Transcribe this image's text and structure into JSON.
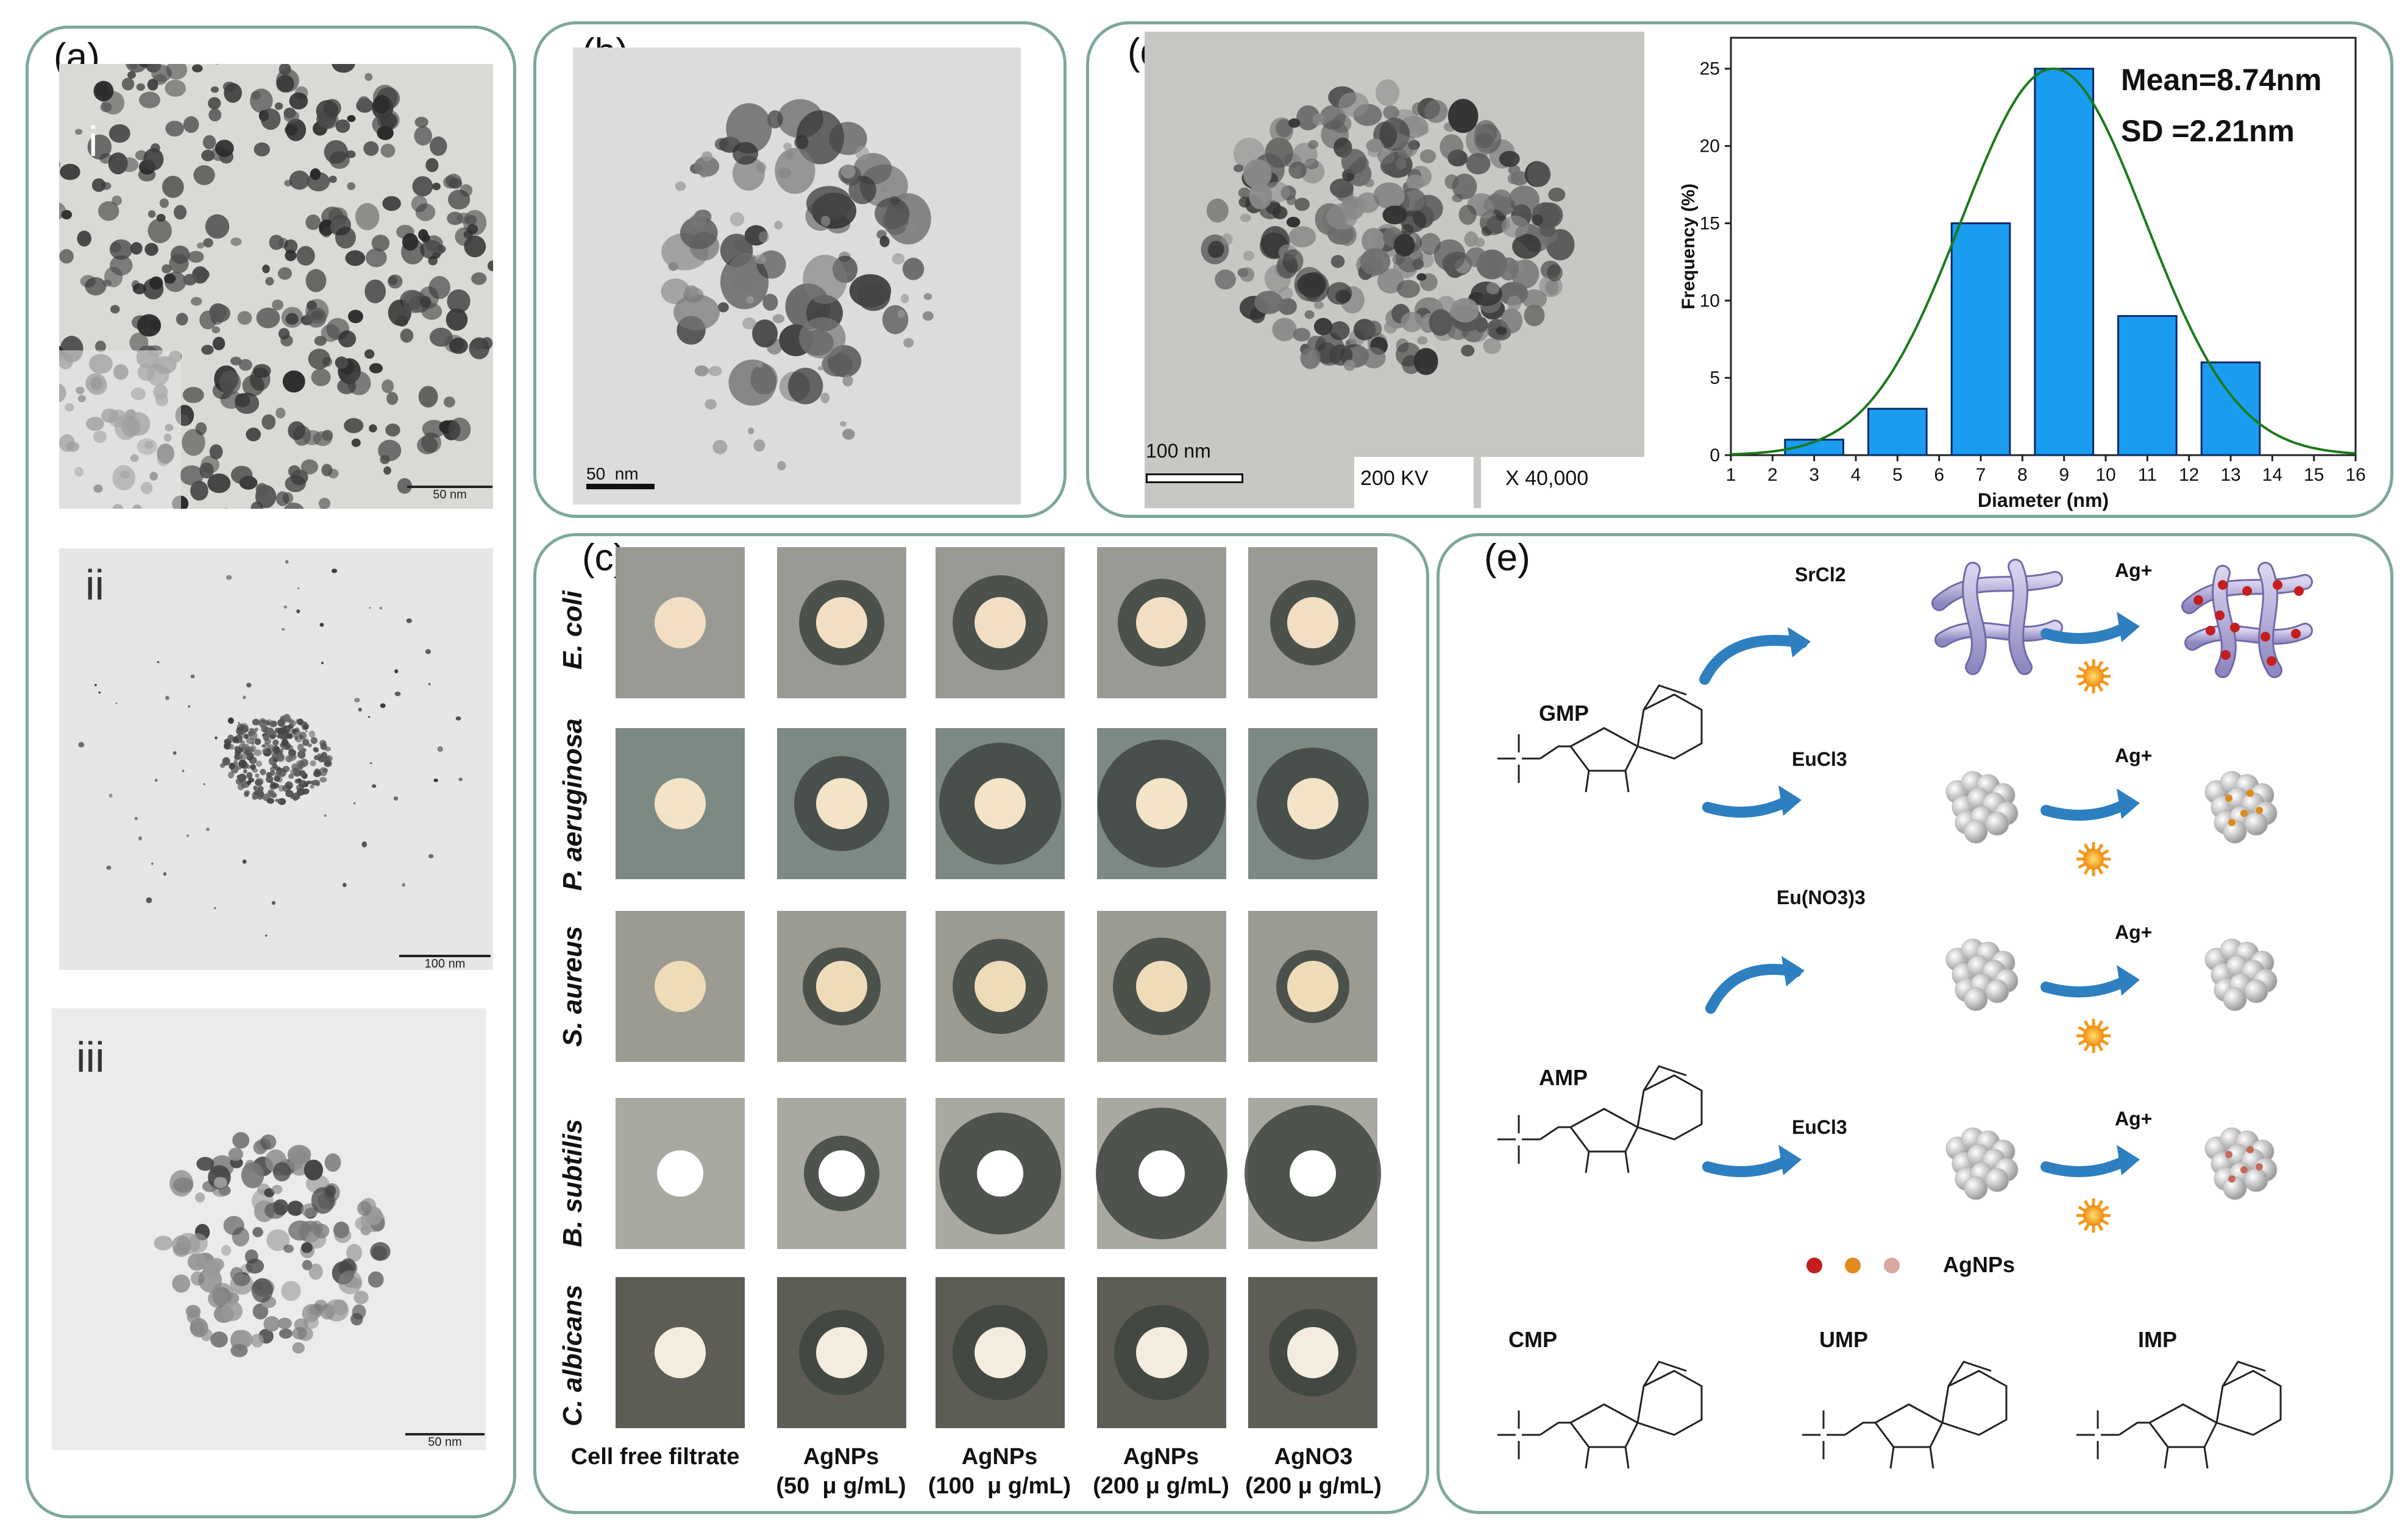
{
  "panels": {
    "a": {
      "label": "(a)",
      "subs": [
        {
          "numeral": "i",
          "scale": "50 nm"
        },
        {
          "numeral": "ii",
          "scale": "100 nm"
        },
        {
          "numeral": "iii",
          "scale": "50 nm"
        }
      ]
    },
    "b": {
      "label": "(b)",
      "scale": "50  nm"
    },
    "c": {
      "label": "(c)",
      "rows": [
        "E. coli",
        "P. aeruginosa",
        "S. aureus",
        "B. subtilis",
        "C. albicans"
      ],
      "columns": [
        {
          "line1": "Cell free filtrate",
          "line2": ""
        },
        {
          "line1": "AgNPs",
          "line2": "(50  μ g/mL)"
        },
        {
          "line1": "AgNPs",
          "line2": "(100  μ g/mL)"
        },
        {
          "line1": "AgNPs",
          "line2": "(200 μ g/mL)"
        },
        {
          "line1": "AgNO3",
          "line2": "(200 μ g/mL)"
        }
      ]
    },
    "d": {
      "label": "(d)",
      "scale": "100 nm",
      "voltage": "200 KV",
      "magnification": "X 40,000"
    },
    "e": {
      "label": "(e)",
      "reagents": {
        "sr": "SrCl2",
        "eu1": "EuCl3",
        "eu2": "Eu(NO3)3",
        "eu3": "EuCl3"
      },
      "ag": "Ag+",
      "legend": "AgNPs",
      "molecules": {
        "gmp": "GMP",
        "amp": "AMP",
        "cmp": "CMP",
        "ump": "UMP",
        "imp": "IMP"
      }
    }
  },
  "chart_data": {
    "type": "bar",
    "title": "",
    "xlabel": "Diameter (nm)",
    "ylabel": "Frequency (%)",
    "x": [
      3,
      5,
      7,
      9,
      11,
      13
    ],
    "values": [
      1,
      3,
      15,
      25,
      9,
      6
    ],
    "bar_width": 1.4,
    "xlim": [
      1,
      16
    ],
    "ylim": [
      0,
      27
    ],
    "xticks": [
      1,
      2,
      3,
      4,
      5,
      6,
      7,
      8,
      9,
      10,
      11,
      12,
      13,
      14,
      15,
      16
    ],
    "yticks": [
      0,
      5,
      10,
      15,
      20,
      25
    ],
    "fit": {
      "type": "gaussian",
      "mean": 8.74,
      "sd": 2.21,
      "peak": 25
    },
    "annotations": [
      "Mean=8.74nm",
      "SD     =2.21nm"
    ],
    "colors": {
      "bar": "#1a9cf0",
      "fit": "#1a7a1a"
    }
  }
}
